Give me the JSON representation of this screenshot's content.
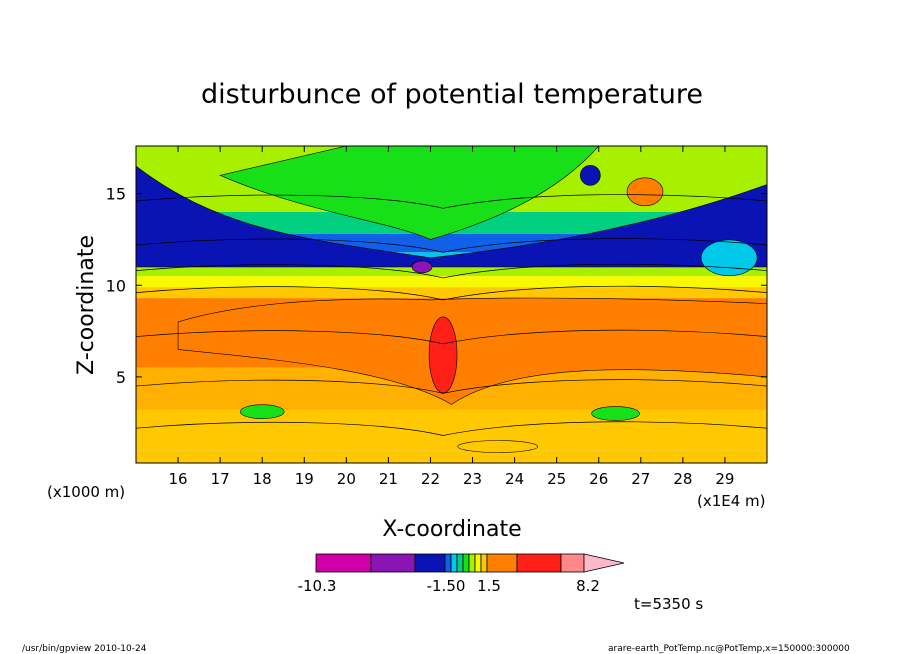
{
  "chart_data": {
    "type": "heatmap",
    "title": "disturbunce of potential temperature",
    "xlabel": "X-coordinate",
    "ylabel": "Z-coordinate",
    "x_unit_left": "(x1000 m)",
    "x_unit_right": "(x1E4 m)",
    "xlim": [
      15.0,
      30.0
    ],
    "ylim": [
      0.3,
      17.6
    ],
    "x_ticks": [
      "16",
      "17",
      "18",
      "19",
      "20",
      "21",
      "22",
      "23",
      "24",
      "25",
      "26",
      "27",
      "28",
      "29"
    ],
    "y_ticks": [
      "5",
      "10",
      "15"
    ],
    "colorbar": {
      "colors": [
        "#d000a8",
        "#8a14b4",
        "#0a14b4",
        "#1060e8",
        "#00c8e8",
        "#00d080",
        "#18e018",
        "#a8f000",
        "#f8f800",
        "#ffc800",
        "#ff8000",
        "#ff2018",
        "#ff8888",
        "#ffb8c8"
      ],
      "labels": [
        "-10.3",
        "-1.50",
        "1.5",
        "8.2"
      ]
    },
    "bands": [
      {
        "z": [
          0.3,
          1.0
        ],
        "color": "#ffc800"
      },
      {
        "z": [
          1.0,
          3.2
        ],
        "color": "#ffc800"
      },
      {
        "z": [
          3.2,
          5.5
        ],
        "color": "#ffb000"
      },
      {
        "z": [
          5.5,
          9.3
        ],
        "color": "#ff8000"
      },
      {
        "z": [
          9.3,
          9.9
        ],
        "color": "#ffc800"
      },
      {
        "z": [
          9.9,
          10.5
        ],
        "color": "#f8f800"
      },
      {
        "z": [
          10.5,
          11.1
        ],
        "color": "#a8f000"
      },
      {
        "z": [
          11.1,
          11.8
        ],
        "color": "#00c8e8"
      },
      {
        "z": [
          11.8,
          12.8
        ],
        "color": "#1060e8"
      },
      {
        "z": [
          12.8,
          14.0
        ],
        "color": "#00d080"
      },
      {
        "z": [
          14.0,
          17.6
        ],
        "color": "#a8f000"
      }
    ],
    "max_label": "8.2",
    "min_label": "-10.3"
  },
  "time_label": "t=5350 s",
  "footer": {
    "left": "/usr/bin/gpview   2010-10-24",
    "right": "arare-earth_PotTemp.nc@PotTemp,x=150000:300000"
  }
}
